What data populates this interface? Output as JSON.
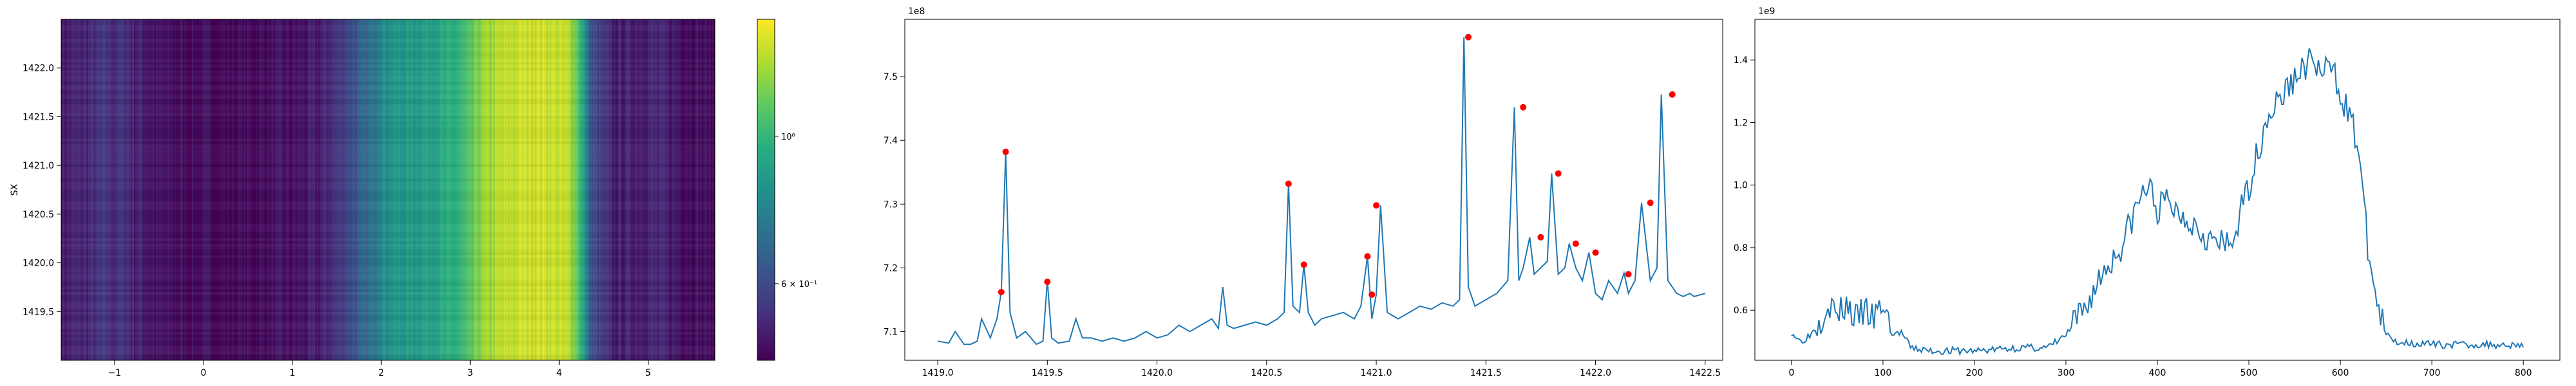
{
  "chart_data": [
    {
      "type": "heatmap",
      "ylabel": "SX",
      "xlim": [
        -1.6,
        5.75
      ],
      "ylim": [
        1419.0,
        1422.5
      ],
      "xticks": [
        -1,
        0,
        1,
        2,
        3,
        4,
        5
      ],
      "xtick_labels": [
        "−1",
        "0",
        "1",
        "2",
        "3",
        "4",
        "5"
      ],
      "yticks": [
        1419.5,
        1420.0,
        1420.5,
        1421.0,
        1421.5,
        1422.0
      ],
      "ytick_labels": [
        "1419.5",
        "1420.0",
        "1420.5",
        "1421.0",
        "1421.5",
        "1422.0"
      ],
      "colormap": "viridis",
      "colorbar": {
        "scale": "log",
        "ticks": [
          {
            "value": 1.0,
            "label": "10⁰"
          },
          {
            "value": 0.6,
            "label": "6 × 10⁻¹"
          }
        ],
        "range": [
          0.46,
          1.5
        ]
      },
      "profile_x": [
        -1.6,
        -1.3,
        -1.1,
        -1.0,
        -0.9,
        -0.8,
        -0.7,
        -0.5,
        0.0,
        0.5,
        1.0,
        1.3,
        1.5,
        1.7,
        1.9,
        2.0,
        2.2,
        2.4,
        2.6,
        2.8,
        3.0,
        3.1,
        3.3,
        3.5,
        3.7,
        3.9,
        4.1,
        4.2,
        4.35,
        4.6,
        5.0,
        5.4,
        5.75
      ],
      "profile_values": [
        0.5,
        0.52,
        0.55,
        0.53,
        0.55,
        0.52,
        0.51,
        0.48,
        0.47,
        0.47,
        0.48,
        0.5,
        0.55,
        0.62,
        0.72,
        0.82,
        0.85,
        0.88,
        0.92,
        0.95,
        1.05,
        1.2,
        1.3,
        1.36,
        1.4,
        1.38,
        1.32,
        1.15,
        0.62,
        0.5,
        0.52,
        0.49,
        0.47
      ]
    },
    {
      "type": "line",
      "offset_label": "1e8",
      "xlim": [
        1418.85,
        1422.58
      ],
      "ylim": [
        7.055,
        7.59
      ],
      "xticks": [
        1419.0,
        1419.5,
        1420.0,
        1420.5,
        1421.0,
        1421.5,
        1422.0,
        1422.5
      ],
      "xtick_labels": [
        "1419.0",
        "1419.5",
        "1420.0",
        "1420.5",
        "1421.0",
        "1421.5",
        "1422.0",
        "1422.5"
      ],
      "yticks": [
        7.1,
        7.2,
        7.3,
        7.4,
        7.5
      ],
      "ytick_labels": [
        "7.1",
        "7.2",
        "7.3",
        "7.4",
        "7.5"
      ],
      "series": [
        {
          "color": "#1f77b4",
          "x": [
            1419.0,
            1419.05,
            1419.08,
            1419.12,
            1419.15,
            1419.18,
            1419.2,
            1419.24,
            1419.27,
            1419.29,
            1419.31,
            1419.33,
            1419.36,
            1419.4,
            1419.45,
            1419.48,
            1419.5,
            1419.52,
            1419.55,
            1419.6,
            1419.63,
            1419.66,
            1419.7,
            1419.75,
            1419.8,
            1419.85,
            1419.9,
            1419.95,
            1420.0,
            1420.05,
            1420.1,
            1420.15,
            1420.2,
            1420.25,
            1420.28,
            1420.3,
            1420.32,
            1420.35,
            1420.4,
            1420.45,
            1420.5,
            1420.55,
            1420.58,
            1420.6,
            1420.62,
            1420.65,
            1420.67,
            1420.69,
            1420.72,
            1420.75,
            1420.8,
            1420.85,
            1420.9,
            1420.93,
            1420.96,
            1420.98,
            1421.0,
            1421.02,
            1421.05,
            1421.1,
            1421.15,
            1421.2,
            1421.25,
            1421.3,
            1421.35,
            1421.38,
            1421.4,
            1421.42,
            1421.45,
            1421.5,
            1421.55,
            1421.6,
            1421.63,
            1421.65,
            1421.67,
            1421.7,
            1421.72,
            1421.75,
            1421.78,
            1421.8,
            1421.83,
            1421.86,
            1421.88,
            1421.91,
            1421.94,
            1421.97,
            1422.0,
            1422.03,
            1422.06,
            1422.1,
            1422.13,
            1422.15,
            1422.18,
            1422.21,
            1422.25,
            1422.28,
            1422.3,
            1422.33,
            1422.35,
            1422.37,
            1422.4,
            1422.43,
            1422.45,
            1422.5
          ],
          "values": [
            7.085,
            7.082,
            7.1,
            7.08,
            7.08,
            7.085,
            7.12,
            7.09,
            7.12,
            7.162,
            7.382,
            7.13,
            7.09,
            7.1,
            7.08,
            7.085,
            7.18,
            7.09,
            7.082,
            7.085,
            7.12,
            7.09,
            7.09,
            7.085,
            7.09,
            7.085,
            7.09,
            7.1,
            7.09,
            7.095,
            7.11,
            7.1,
            7.11,
            7.12,
            7.105,
            7.17,
            7.11,
            7.105,
            7.11,
            7.115,
            7.11,
            7.12,
            7.13,
            7.332,
            7.14,
            7.13,
            7.205,
            7.13,
            7.11,
            7.12,
            7.125,
            7.13,
            7.12,
            7.14,
            7.218,
            7.12,
            7.158,
            7.298,
            7.13,
            7.12,
            7.13,
            7.14,
            7.135,
            7.145,
            7.14,
            7.15,
            7.562,
            7.17,
            7.14,
            7.15,
            7.16,
            7.18,
            7.452,
            7.18,
            7.2,
            7.248,
            7.19,
            7.2,
            7.21,
            7.348,
            7.19,
            7.2,
            7.238,
            7.2,
            7.18,
            7.224,
            7.16,
            7.15,
            7.18,
            7.16,
            7.192,
            7.16,
            7.18,
            7.302,
            7.18,
            7.2,
            7.472,
            7.18,
            7.17,
            7.16,
            7.155,
            7.16,
            7.155,
            7.16
          ]
        }
      ],
      "peaks": {
        "color": "#ff0000",
        "x": [
          1419.29,
          1419.31,
          1419.5,
          1420.6,
          1420.67,
          1420.96,
          1420.98,
          1421.0,
          1421.42,
          1421.67,
          1421.75,
          1421.83,
          1421.91,
          1422.0,
          1422.15,
          1422.25,
          1422.35
        ],
        "values": [
          7.162,
          7.382,
          7.178,
          7.332,
          7.205,
          7.218,
          7.158,
          7.298,
          7.562,
          7.452,
          7.248,
          7.348,
          7.238,
          7.224,
          7.19,
          7.302,
          7.472
        ]
      }
    },
    {
      "type": "line",
      "offset_label": "1e9",
      "xlim": [
        -40,
        840
      ],
      "ylim": [
        0.44,
        1.53
      ],
      "xticks": [
        0,
        100,
        200,
        300,
        400,
        500,
        600,
        700,
        800
      ],
      "xtick_labels": [
        "0",
        "100",
        "200",
        "300",
        "400",
        "500",
        "600",
        "700",
        "800"
      ],
      "yticks": [
        0.6,
        0.8,
        1.0,
        1.2,
        1.4
      ],
      "ytick_labels": [
        "0.6",
        "0.8",
        "1.0",
        "1.2",
        "1.4"
      ],
      "series": [
        {
          "color": "#1f77b4",
          "profile_x": [
            0,
            10,
            20,
            30,
            40,
            50,
            60,
            70,
            80,
            90,
            100,
            110,
            120,
            130,
            150,
            200,
            250,
            280,
            300,
            320,
            340,
            360,
            380,
            390,
            400,
            410,
            420,
            440,
            460,
            480,
            500,
            520,
            540,
            560,
            570,
            580,
            590,
            600,
            610,
            620,
            630,
            640,
            650,
            660,
            700,
            750,
            800
          ],
          "profile_values": [
            0.53,
            0.5,
            0.52,
            0.56,
            0.63,
            0.58,
            0.62,
            0.57,
            0.6,
            0.57,
            0.62,
            0.52,
            0.53,
            0.48,
            0.47,
            0.47,
            0.48,
            0.48,
            0.52,
            0.6,
            0.72,
            0.8,
            0.95,
            1.0,
            0.92,
            0.95,
            0.92,
            0.88,
            0.82,
            0.8,
            1.0,
            1.22,
            1.3,
            1.38,
            1.4,
            1.35,
            1.38,
            1.3,
            1.22,
            1.12,
            0.8,
            0.62,
            0.52,
            0.5,
            0.49,
            0.49,
            0.49
          ]
        }
      ]
    }
  ]
}
